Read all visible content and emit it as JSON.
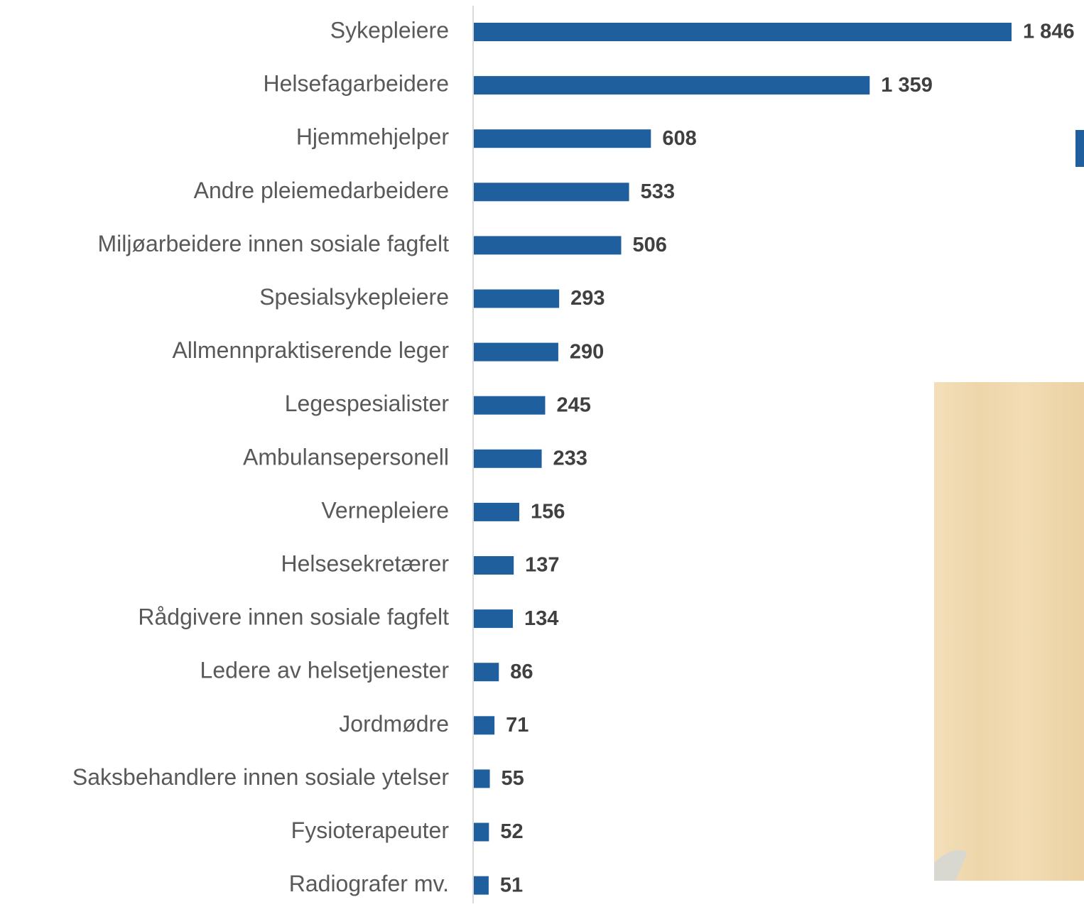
{
  "chart_data": {
    "type": "bar",
    "orientation": "horizontal",
    "color": "#1f5f9e",
    "categories": [
      "Sykepleiere",
      "Helsefagarbeidere",
      "Hjemmehjelper",
      "Andre pleiemedarbeidere",
      "Miljøarbeidere innen sosiale fagfelt",
      "Spesialsykepleiere",
      "Allmennpraktiserende leger",
      "Legespesialister",
      "Ambulansepersonell",
      "Vernepleiere",
      "Helsesekretærer",
      "Rådgivere innen sosiale fagfelt",
      "Ledere av helsetjenester",
      "Jordmødre",
      "Saksbehandlere innen sosiale ytelser",
      "Fysioterapeuter",
      "Radiografer mv."
    ],
    "values": [
      1846,
      1359,
      608,
      533,
      506,
      293,
      290,
      245,
      233,
      156,
      137,
      134,
      86,
      71,
      55,
      52,
      51
    ],
    "value_labels": [
      "1 846",
      "1 359",
      "608",
      "533",
      "506",
      "293",
      "290",
      "245",
      "233",
      "156",
      "137",
      "134",
      "86",
      "71",
      "55",
      "52",
      "51"
    ]
  }
}
